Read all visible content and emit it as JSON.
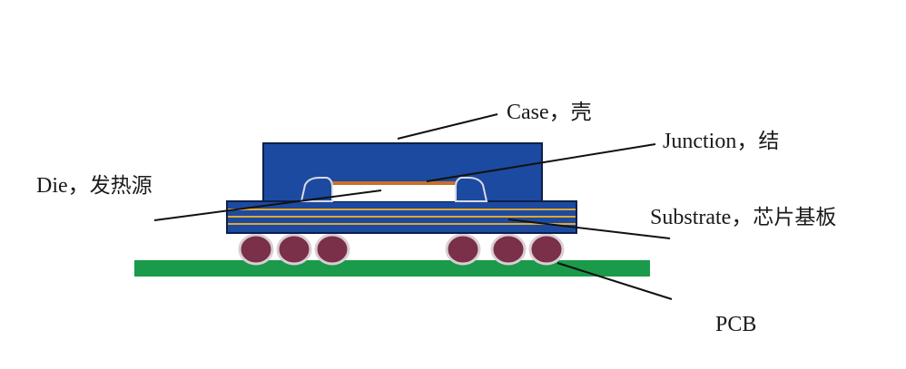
{
  "labels": {
    "case": {
      "en": "Case",
      "sep": "，",
      "zh": "壳"
    },
    "junction": {
      "en": "Junction",
      "sep": "，",
      "zh": "结"
    },
    "die": {
      "en": "Die",
      "sep": "，",
      "zh": "发热源"
    },
    "substrate": {
      "en": "Substrate",
      "sep": "，",
      "zh": "芯片基板"
    },
    "pcb": {
      "en": "PCB"
    }
  },
  "colors": {
    "case_fill": "#1c4aa0",
    "case_stroke": "#0d1f4d",
    "substrate_fill": "#1c4aa0",
    "substrate_trace": "#e0a82e",
    "die_fill": "#ffffff",
    "junction_fill": "#c8702a",
    "pcb_fill": "#1a9a4a",
    "solder_ball_fill": "#7a3048",
    "solder_ball_stroke": "#d9cfd4",
    "leader_line": "#111111"
  }
}
